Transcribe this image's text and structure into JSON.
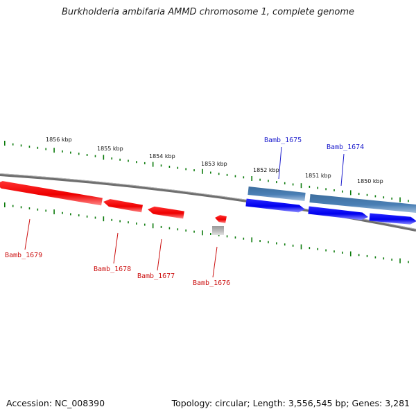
{
  "title": "Burkholderia ambifaria AMMD chromosome 1, complete genome",
  "footer": {
    "accession": "Accession: NC_008390",
    "topology": "Topology: circular; Length: 3,556,545 bp; Genes: 3,281"
  },
  "colors": {
    "plus_strand": "#0000ee",
    "plus_strand_alt": "#4a7fb5",
    "minus_strand": "#ee0000",
    "pseudo": "#bbbbbb",
    "backbone": "#808080",
    "tick": "#0a7a0a",
    "label_plus": "#1a1acc",
    "label_minus": "#cc1111"
  },
  "tick_labels": [
    "1856 kbp",
    "1855 kbp",
    "1854 kbp",
    "1853 kbp",
    "1852 kbp",
    "1851 kbp",
    "1850 kbp"
  ],
  "genes": [
    {
      "id": "Bamb_1679",
      "strand": "minus"
    },
    {
      "id": "Bamb_1678",
      "strand": "minus"
    },
    {
      "id": "Bamb_1677",
      "strand": "minus"
    },
    {
      "id": "Bamb_1676",
      "strand": "minus"
    },
    {
      "id": "Bamb_1675",
      "strand": "plus"
    },
    {
      "id": "Bamb_1674",
      "strand": "plus"
    }
  ]
}
